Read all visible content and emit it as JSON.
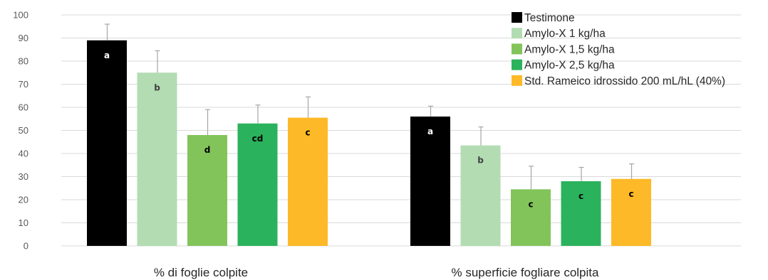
{
  "chart_data": {
    "type": "bar",
    "categories": [
      "% di foglie colpite",
      "% superficie fogliare colpita"
    ],
    "series": [
      {
        "name": "Testimone",
        "color": "#000000",
        "values": [
          89,
          56
        ],
        "errors": [
          7,
          4.5
        ],
        "labels": [
          "a",
          "a"
        ]
      },
      {
        "name": "Amylo-X 1 kg/ha",
        "color": "#b3dcb3",
        "values": [
          75,
          43.5
        ],
        "errors": [
          9.5,
          8
        ],
        "labels": [
          "b",
          "b"
        ]
      },
      {
        "name": "Amylo-X 1,5 kg/ha",
        "color": "#82c45a",
        "values": [
          48,
          24.5
        ],
        "errors": [
          11,
          10
        ],
        "labels": [
          "d",
          "c"
        ]
      },
      {
        "name": "Amylo-X 2,5 kg/ha",
        "color": "#2bb25c",
        "values": [
          53,
          28
        ],
        "errors": [
          8,
          6
        ],
        "labels": [
          "cd",
          "c"
        ]
      },
      {
        "name": "Std. Rameico idrossido 200 mL/hL (40%)",
        "color": "#fdb927",
        "values": [
          55.5,
          29
        ],
        "errors": [
          9,
          6.5
        ],
        "labels": [
          "c",
          "c"
        ]
      }
    ],
    "label_colors": [
      "#ffffff",
      "#404040",
      "#000000",
      "#000000",
      "#000000"
    ],
    "ylim": [
      0,
      100
    ],
    "yticks": [
      "0",
      "10",
      "20",
      "30",
      "40",
      "50",
      "60",
      "70",
      "80",
      "90",
      "100"
    ],
    "title": "",
    "xlabel": "",
    "ylabel": "",
    "grid": true,
    "legend_position": "top-right"
  }
}
